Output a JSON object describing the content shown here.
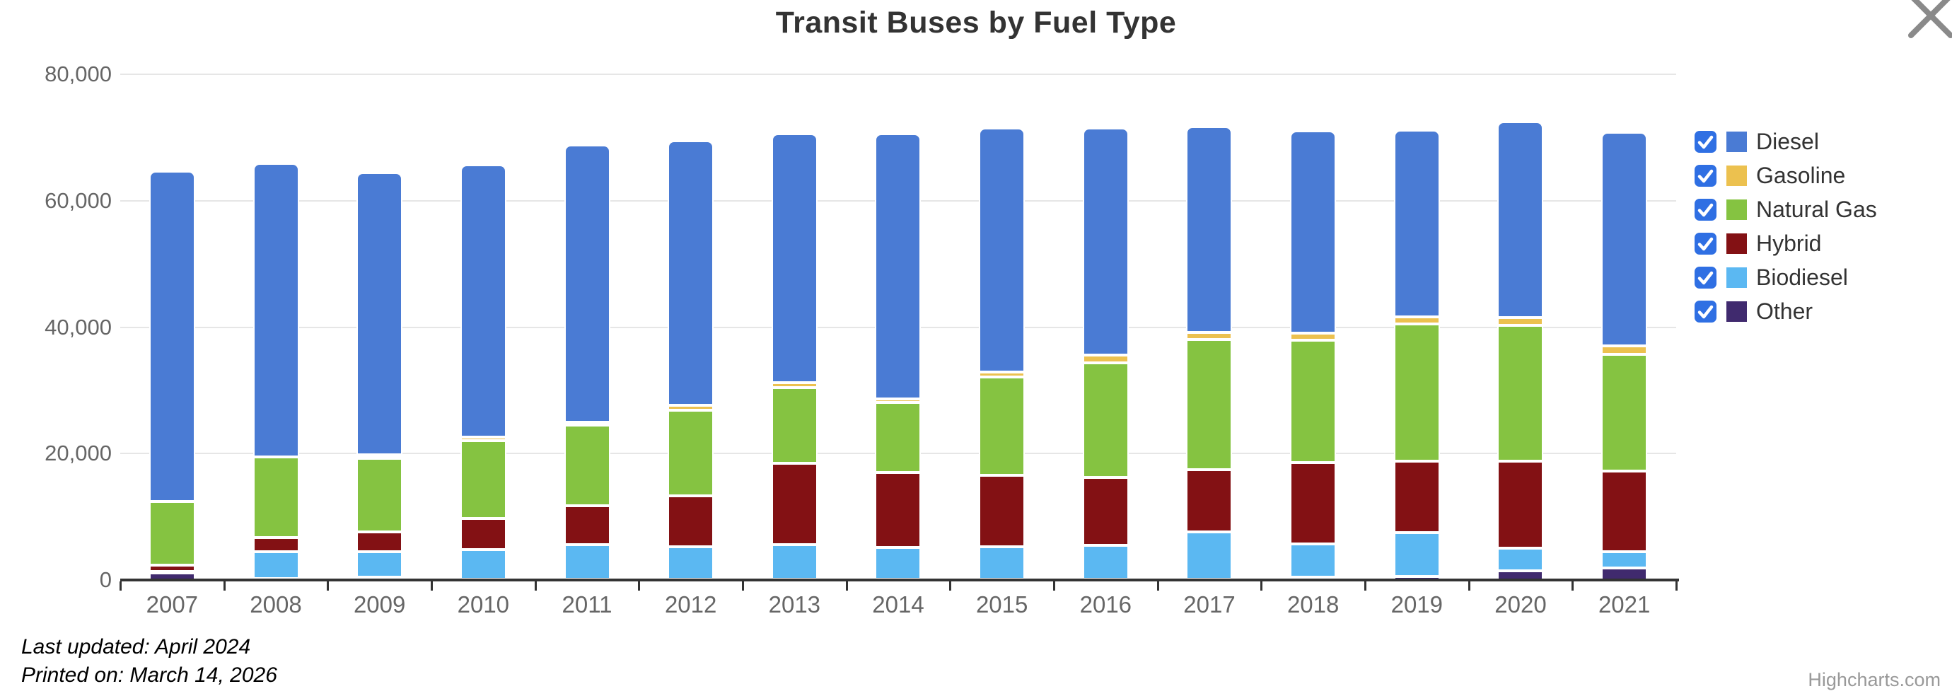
{
  "title": "Transit Buses by Fuel Type",
  "footer": {
    "line1": "Last updated: April 2024",
    "line2": "Printed on: March 14, 2026"
  },
  "credits": "Highcharts.com",
  "colors": {
    "checkbox_blue": "#2f6fe3",
    "grid": "#e6e6e6",
    "axis": "#333333",
    "tick_label": "#666666",
    "legend_text": "#333333",
    "title_text": "#333333",
    "credits_text": "#999999",
    "close_icon": "#8a8a8a"
  },
  "chart_data": {
    "type": "bar",
    "stacking": "stacked-column",
    "title": "Transit Buses by Fuel Type",
    "xlabel": "",
    "ylabel": "",
    "ylim": [
      0,
      80000
    ],
    "yticks": [
      0,
      20000,
      40000,
      60000,
      80000
    ],
    "ytick_labels": [
      "0",
      "20,000",
      "40,000",
      "60,000",
      "80,000"
    ],
    "grid": true,
    "legend_position": "right",
    "legend_checked": [
      true,
      true,
      true,
      true,
      true,
      true
    ],
    "categories": [
      "2007",
      "2008",
      "2009",
      "2010",
      "2011",
      "2012",
      "2013",
      "2014",
      "2015",
      "2016",
      "2017",
      "2018",
      "2019",
      "2020",
      "2021"
    ],
    "series": [
      {
        "name": "Diesel",
        "color": "#4a7bd4",
        "values": [
          52300,
          46400,
          44700,
          43150,
          43900,
          41850,
          39300,
          41850,
          38600,
          35900,
          32500,
          32050,
          29500,
          30950,
          33850
        ]
      },
      {
        "name": "Gasoline",
        "color": "#ecc14f",
        "values": [
          0,
          0,
          450,
          550,
          450,
          750,
          850,
          600,
          750,
          1150,
          1200,
          1100,
          1200,
          1200,
          1350
        ]
      },
      {
        "name": "Natural Gas",
        "color": "#85c341",
        "values": [
          10000,
          12700,
          11650,
          12300,
          12700,
          13550,
          11900,
          11100,
          15500,
          18150,
          20500,
          19300,
          21600,
          21550,
          18450
        ]
      },
      {
        "name": "Hybrid",
        "color": "#831114",
        "values": [
          1100,
          2300,
          3200,
          4850,
          6150,
          8050,
          12900,
          11900,
          11300,
          10750,
          9850,
          12900,
          11400,
          13700,
          12700
        ]
      },
      {
        "name": "Biodiesel",
        "color": "#5bb8f2",
        "values": [
          200,
          4250,
          4000,
          4750,
          5500,
          5150,
          5500,
          5000,
          5200,
          5400,
          7550,
          5250,
          6900,
          3600,
          2600
        ]
      },
      {
        "name": "Other",
        "color": "#402a6e",
        "values": [
          1100,
          200,
          450,
          100,
          100,
          100,
          100,
          100,
          100,
          100,
          100,
          450,
          550,
          1450,
          1900
        ]
      }
    ]
  }
}
